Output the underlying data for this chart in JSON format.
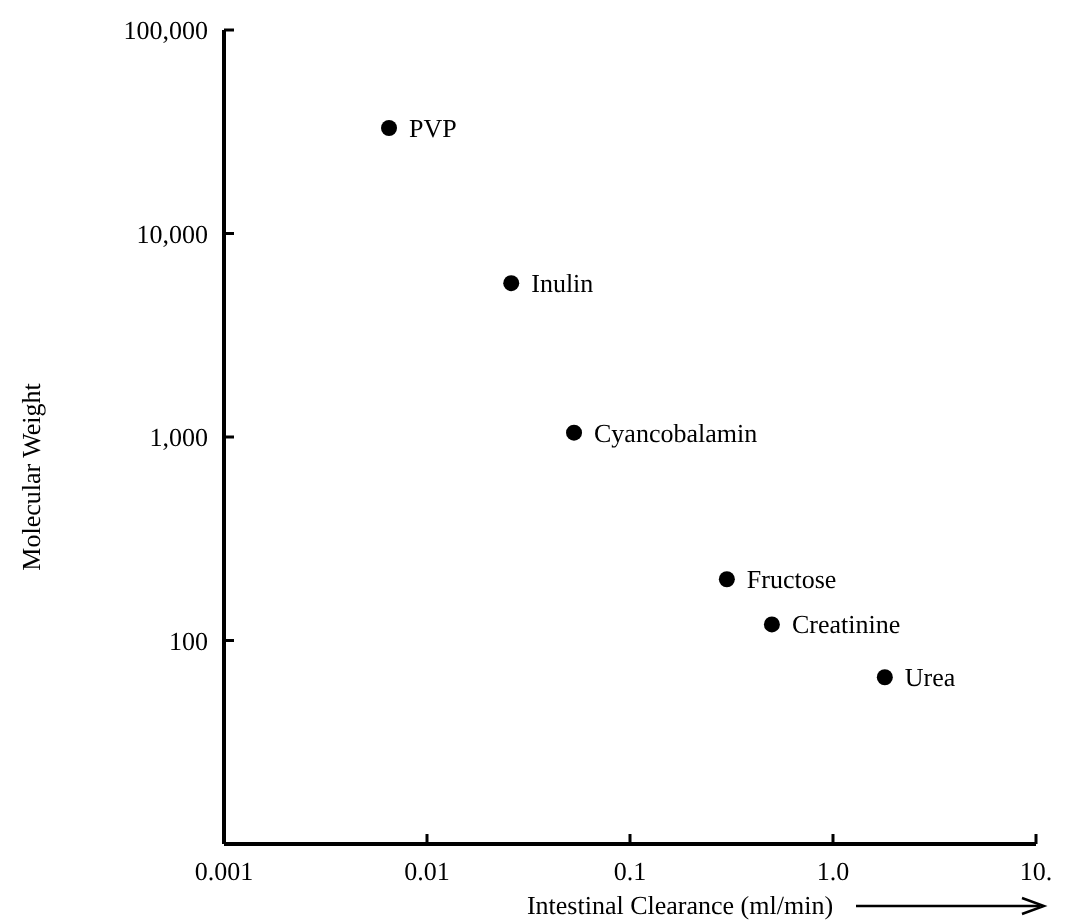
{
  "chart_data": {
    "type": "scatter",
    "xlabel": "Intestinal Clearance (ml/min)",
    "ylabel": "Molecular Weight",
    "log": "xy",
    "marker": "circle",
    "grid": false,
    "x": [
      0.0065,
      0.026,
      0.053,
      0.3,
      0.5,
      1.8
    ],
    "series": [
      {
        "color": "#000000",
        "values": [
          33000,
          5700,
          1050,
          200,
          120,
          66
        ]
      }
    ],
    "xlim": [
      0.001,
      10
    ],
    "xticks": [
      0.001,
      0.01,
      0.1,
      {
        "value": 1,
        "label": "1.0"
      },
      {
        "value": 10,
        "label": "10."
      }
    ],
    "ylim": [
      10,
      100000
    ],
    "yticks": [
      {
        "value": 100,
        "label": "100"
      },
      {
        "value": 1000,
        "label": "1,000"
      },
      {
        "value": 10000,
        "label": "10,000"
      },
      {
        "value": 100000,
        "label": "100,000"
      }
    ],
    "annotations": [
      {
        "text": "PVP",
        "x": 0.0065,
        "y": 33000
      },
      {
        "text": "Inulin",
        "x": 0.026,
        "y": 5700
      },
      {
        "text": "Cyancobalamin",
        "x": 0.053,
        "y": 1050
      },
      {
        "text": "Fructose",
        "x": 0.3,
        "y": 200
      },
      {
        "text": "Creatinine",
        "x": 0.5,
        "y": 120
      },
      {
        "text": "Urea",
        "x": 1.8,
        "y": 66
      }
    ]
  }
}
